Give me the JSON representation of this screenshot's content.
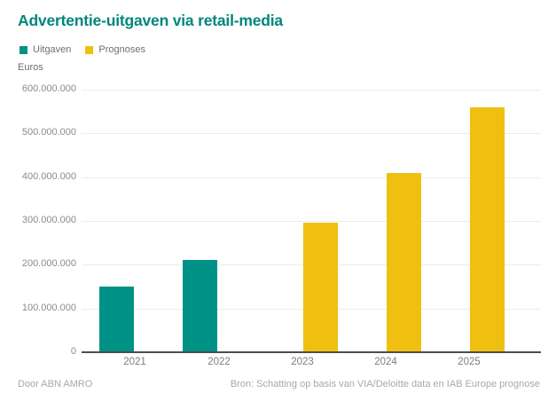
{
  "footer": {
    "left": "Door ABN AMRO",
    "right": "Bron: Schatting op basis van VIA/Deloitte data en IAB Europe prognose"
  },
  "colors": {
    "title_teal": "#00867c",
    "uitgaven_teal": "#009286",
    "prognoses_yellow": "#f0c011",
    "gridline": "#ececec",
    "axis_line": "#4d4d4d"
  },
  "chart_data": {
    "type": "bar",
    "title": "Advertentie-uitgaven via retail-media",
    "ylabel": "Euros",
    "xlabel": "",
    "categories": [
      "2021",
      "2022",
      "2023",
      "2024",
      "2025"
    ],
    "series": [
      {
        "name": "Uitgaven",
        "color": "#009286",
        "values": [
          150000000,
          210000000,
          null,
          null,
          null
        ]
      },
      {
        "name": "Prognoses",
        "color": "#f0c011",
        "values": [
          null,
          null,
          295000000,
          410000000,
          560000000
        ]
      }
    ],
    "ylim": [
      0,
      600000000
    ],
    "ytick_values": [
      0,
      100000000,
      200000000,
      300000000,
      400000000,
      500000000,
      600000000
    ],
    "ytick_labels": [
      "0",
      "100.000.000",
      "200.000.000",
      "300.000.000",
      "400.000.000",
      "500.000.000",
      "600.000.000"
    ],
    "grid": true,
    "legend_position": "top-left"
  }
}
